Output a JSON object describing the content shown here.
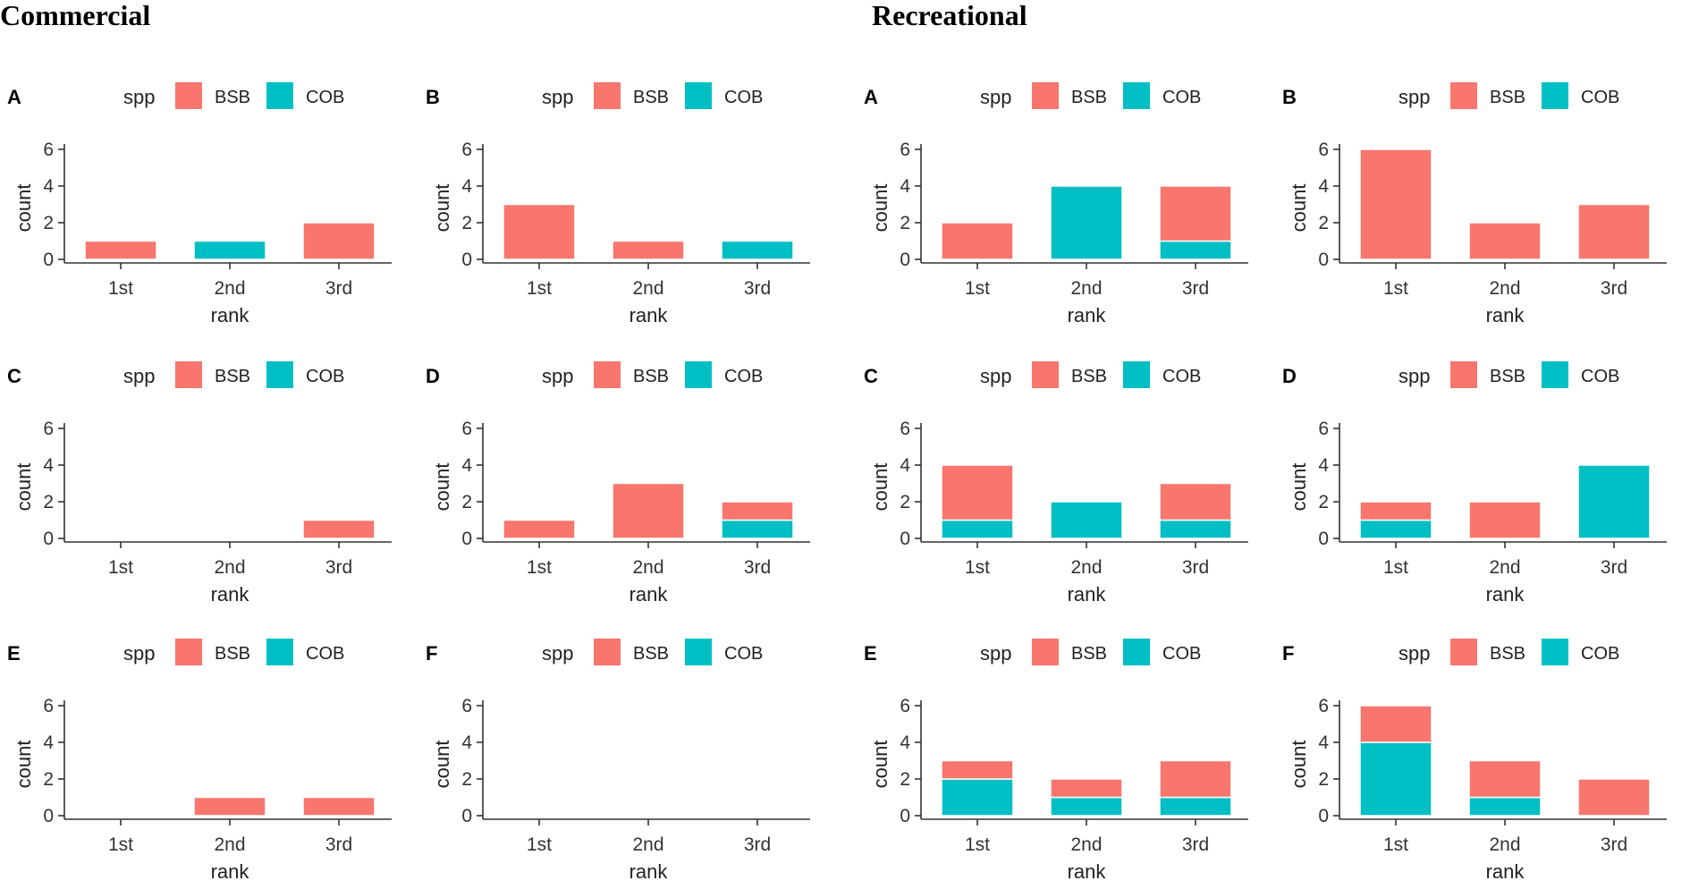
{
  "sections": [
    {
      "title": "Commercial"
    },
    {
      "title": "Recreational"
    }
  ],
  "colors": {
    "BSB": "#F8766D",
    "COB": "#00BFC4"
  },
  "chart_data": [
    {
      "section": "Commercial",
      "panel": "A",
      "type": "bar",
      "stacked": true,
      "categories": [
        "1st",
        "2nd",
        "3rd"
      ],
      "legend_title": "spp",
      "legend_labels": [
        "BSB",
        "COB"
      ],
      "series": [
        {
          "name": "BSB",
          "values": [
            1,
            0,
            2
          ]
        },
        {
          "name": "COB",
          "values": [
            0,
            1,
            0
          ]
        }
      ],
      "xlabel": "rank",
      "ylabel": "count",
      "ylim": [
        0,
        6
      ],
      "yticks": [
        0,
        2,
        4,
        6
      ],
      "ytick_labels": [
        "0",
        "2",
        "4",
        "6"
      ]
    },
    {
      "section": "Commercial",
      "panel": "B",
      "type": "bar",
      "stacked": true,
      "categories": [
        "1st",
        "2nd",
        "3rd"
      ],
      "legend_title": "spp",
      "legend_labels": [
        "BSB",
        "COB"
      ],
      "series": [
        {
          "name": "BSB",
          "values": [
            3,
            1,
            0
          ]
        },
        {
          "name": "COB",
          "values": [
            0,
            0,
            1
          ]
        }
      ],
      "xlabel": "rank",
      "ylabel": "count",
      "ylim": [
        0,
        6
      ],
      "yticks": [
        0,
        2,
        4,
        6
      ],
      "ytick_labels": [
        "0",
        "2",
        "4",
        "6"
      ]
    },
    {
      "section": "Recreational",
      "panel": "A",
      "type": "bar",
      "stacked": true,
      "categories": [
        "1st",
        "2nd",
        "3rd"
      ],
      "legend_title": "spp",
      "legend_labels": [
        "BSB",
        "COB"
      ],
      "series": [
        {
          "name": "BSB",
          "values": [
            2,
            0,
            3
          ]
        },
        {
          "name": "COB",
          "values": [
            0,
            4,
            1
          ]
        }
      ],
      "xlabel": "rank",
      "ylabel": "count",
      "ylim": [
        0,
        6
      ],
      "yticks": [
        0,
        2,
        4,
        6
      ],
      "ytick_labels": [
        "0",
        "2",
        "4",
        "6"
      ]
    },
    {
      "section": "Recreational",
      "panel": "B",
      "type": "bar",
      "stacked": true,
      "categories": [
        "1st",
        "2nd",
        "3rd"
      ],
      "legend_title": "spp",
      "legend_labels": [
        "BSB",
        "COB"
      ],
      "series": [
        {
          "name": "BSB",
          "values": [
            6,
            2,
            3
          ]
        },
        {
          "name": "COB",
          "values": [
            0,
            0,
            0
          ]
        }
      ],
      "xlabel": "rank",
      "ylabel": "count",
      "ylim": [
        0,
        6
      ],
      "yticks": [
        0,
        2,
        4,
        6
      ],
      "ytick_labels": [
        "0",
        "2",
        "4",
        "6"
      ]
    },
    {
      "section": "Commercial",
      "panel": "C",
      "type": "bar",
      "stacked": true,
      "categories": [
        "1st",
        "2nd",
        "3rd"
      ],
      "legend_title": "spp",
      "legend_labels": [
        "BSB",
        "COB"
      ],
      "series": [
        {
          "name": "BSB",
          "values": [
            0,
            0,
            1
          ]
        },
        {
          "name": "COB",
          "values": [
            0,
            0,
            0
          ]
        }
      ],
      "xlabel": "rank",
      "ylabel": "count",
      "ylim": [
        0,
        6
      ],
      "yticks": [
        0,
        2,
        4,
        6
      ],
      "ytick_labels": [
        "0",
        "2",
        "4",
        "6"
      ]
    },
    {
      "section": "Commercial",
      "panel": "D",
      "type": "bar",
      "stacked": true,
      "categories": [
        "1st",
        "2nd",
        "3rd"
      ],
      "legend_title": "spp",
      "legend_labels": [
        "BSB",
        "COB"
      ],
      "series": [
        {
          "name": "BSB",
          "values": [
            1,
            3,
            1
          ]
        },
        {
          "name": "COB",
          "values": [
            0,
            0,
            1
          ]
        }
      ],
      "xlabel": "rank",
      "ylabel": "count",
      "ylim": [
        0,
        6
      ],
      "yticks": [
        0,
        2,
        4,
        6
      ],
      "ytick_labels": [
        "0",
        "2",
        "4",
        "6"
      ]
    },
    {
      "section": "Recreational",
      "panel": "C",
      "type": "bar",
      "stacked": true,
      "categories": [
        "1st",
        "2nd",
        "3rd"
      ],
      "legend_title": "spp",
      "legend_labels": [
        "BSB",
        "COB"
      ],
      "series": [
        {
          "name": "BSB",
          "values": [
            3,
            0,
            2
          ]
        },
        {
          "name": "COB",
          "values": [
            1,
            2,
            1
          ]
        }
      ],
      "xlabel": "rank",
      "ylabel": "count",
      "ylim": [
        0,
        6
      ],
      "yticks": [
        0,
        2,
        4,
        6
      ],
      "ytick_labels": [
        "0",
        "2",
        "4",
        "6"
      ]
    },
    {
      "section": "Recreational",
      "panel": "D",
      "type": "bar",
      "stacked": true,
      "categories": [
        "1st",
        "2nd",
        "3rd"
      ],
      "legend_title": "spp",
      "legend_labels": [
        "BSB",
        "COB"
      ],
      "series": [
        {
          "name": "BSB",
          "values": [
            1,
            2,
            0
          ]
        },
        {
          "name": "COB",
          "values": [
            1,
            0,
            4
          ]
        }
      ],
      "xlabel": "rank",
      "ylabel": "count",
      "ylim": [
        0,
        6
      ],
      "yticks": [
        0,
        2,
        4,
        6
      ],
      "ytick_labels": [
        "0",
        "2",
        "4",
        "6"
      ]
    },
    {
      "section": "Commercial",
      "panel": "E",
      "type": "bar",
      "stacked": true,
      "categories": [
        "1st",
        "2nd",
        "3rd"
      ],
      "legend_title": "spp",
      "legend_labels": [
        "BSB",
        "COB"
      ],
      "series": [
        {
          "name": "BSB",
          "values": [
            0,
            1,
            1
          ]
        },
        {
          "name": "COB",
          "values": [
            0,
            0,
            0
          ]
        }
      ],
      "xlabel": "rank",
      "ylabel": "count",
      "ylim": [
        0,
        6
      ],
      "yticks": [
        0,
        2,
        4,
        6
      ],
      "ytick_labels": [
        "0",
        "2",
        "4",
        "6"
      ]
    },
    {
      "section": "Commercial",
      "panel": "F",
      "type": "bar",
      "stacked": true,
      "categories": [
        "1st",
        "2nd",
        "3rd"
      ],
      "legend_title": "spp",
      "legend_labels": [
        "BSB",
        "COB"
      ],
      "series": [
        {
          "name": "BSB",
          "values": [
            0,
            0,
            0
          ]
        },
        {
          "name": "COB",
          "values": [
            0,
            0,
            0
          ]
        }
      ],
      "xlabel": "rank",
      "ylabel": "count",
      "ylim": [
        0,
        6
      ],
      "yticks": [
        0,
        2,
        4,
        6
      ],
      "ytick_labels": [
        "0",
        "2",
        "4",
        "6"
      ]
    },
    {
      "section": "Recreational",
      "panel": "E",
      "type": "bar",
      "stacked": true,
      "categories": [
        "1st",
        "2nd",
        "3rd"
      ],
      "legend_title": "spp",
      "legend_labels": [
        "BSB",
        "COB"
      ],
      "series": [
        {
          "name": "BSB",
          "values": [
            1,
            1,
            2
          ]
        },
        {
          "name": "COB",
          "values": [
            2,
            1,
            1
          ]
        }
      ],
      "xlabel": "rank",
      "ylabel": "count",
      "ylim": [
        0,
        6
      ],
      "yticks": [
        0,
        2,
        4,
        6
      ],
      "ytick_labels": [
        "0",
        "2",
        "4",
        "6"
      ]
    },
    {
      "section": "Recreational",
      "panel": "F",
      "type": "bar",
      "stacked": true,
      "categories": [
        "1st",
        "2nd",
        "3rd"
      ],
      "legend_title": "spp",
      "legend_labels": [
        "BSB",
        "COB"
      ],
      "series": [
        {
          "name": "BSB",
          "values": [
            2,
            2,
            2
          ]
        },
        {
          "name": "COB",
          "values": [
            4,
            1,
            0
          ]
        }
      ],
      "xlabel": "rank",
      "ylabel": "count",
      "ylim": [
        0,
        6
      ],
      "yticks": [
        0,
        2,
        4,
        6
      ],
      "ytick_labels": [
        "0",
        "2",
        "4",
        "6"
      ]
    }
  ]
}
